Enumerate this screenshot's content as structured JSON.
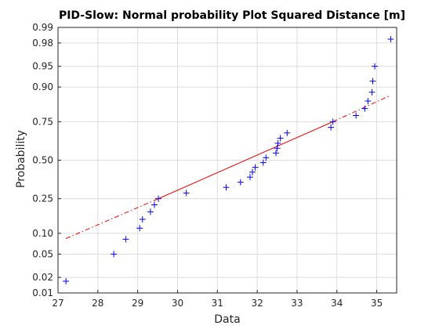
{
  "chart_data": {
    "type": "scatter",
    "title": "PID-Slow: Normal probability Plot Squared Distance [m]",
    "xlabel": "Data",
    "ylabel": "Probability",
    "xlim": [
      27,
      35.5
    ],
    "ylim": [
      0.01,
      0.99
    ],
    "yscale": "normal-probability",
    "grid": true,
    "x_ticks": [
      27,
      28,
      29,
      30,
      31,
      32,
      33,
      34,
      35
    ],
    "y_ticks": [
      0.01,
      0.02,
      0.05,
      0.1,
      0.25,
      0.5,
      0.75,
      0.9,
      0.95,
      0.98,
      0.99
    ],
    "y_tick_labels": [
      "0.01",
      "0.02",
      "0.05",
      "0.10",
      "0.25",
      "0.50",
      "0.75",
      "0.90",
      "0.95",
      "0.98",
      "0.99"
    ],
    "series": [
      {
        "marker": "+",
        "color": "#0000ff",
        "points": [
          {
            "x": 27.2,
            "y": 0.017
          },
          {
            "x": 28.4,
            "y": 0.05
          },
          {
            "x": 28.7,
            "y": 0.083
          },
          {
            "x": 29.05,
            "y": 0.117
          },
          {
            "x": 29.12,
            "y": 0.15
          },
          {
            "x": 29.32,
            "y": 0.183
          },
          {
            "x": 29.42,
            "y": 0.217
          },
          {
            "x": 29.52,
            "y": 0.25
          },
          {
            "x": 30.22,
            "y": 0.283
          },
          {
            "x": 31.22,
            "y": 0.317
          },
          {
            "x": 31.58,
            "y": 0.35
          },
          {
            "x": 31.82,
            "y": 0.383
          },
          {
            "x": 31.88,
            "y": 0.417
          },
          {
            "x": 31.95,
            "y": 0.45
          },
          {
            "x": 32.15,
            "y": 0.483
          },
          {
            "x": 32.22,
            "y": 0.517
          },
          {
            "x": 32.47,
            "y": 0.55
          },
          {
            "x": 32.5,
            "y": 0.583
          },
          {
            "x": 32.52,
            "y": 0.617
          },
          {
            "x": 32.58,
            "y": 0.65
          },
          {
            "x": 32.75,
            "y": 0.683
          },
          {
            "x": 33.85,
            "y": 0.717
          },
          {
            "x": 33.9,
            "y": 0.75
          },
          {
            "x": 34.48,
            "y": 0.783
          },
          {
            "x": 34.7,
            "y": 0.817
          },
          {
            "x": 34.78,
            "y": 0.85
          },
          {
            "x": 34.88,
            "y": 0.883
          },
          {
            "x": 34.9,
            "y": 0.917
          },
          {
            "x": 34.95,
            "y": 0.95
          },
          {
            "x": 35.35,
            "y": 0.983
          }
        ]
      }
    ],
    "reference_line": {
      "color": "#ff0000",
      "style": "dash-dot",
      "solid_from": [
        29.52,
        0.25
      ],
      "solid_to": [
        33.9,
        0.75
      ],
      "start": [
        27.2,
        0.085
      ],
      "end": [
        35.35,
        0.872
      ]
    }
  }
}
